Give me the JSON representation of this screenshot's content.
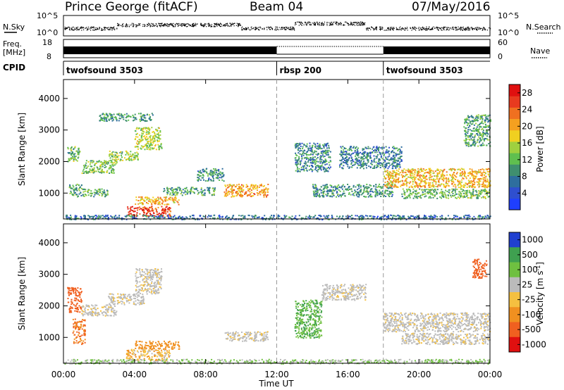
{
  "header": {
    "site": "Prince George (fitACF)",
    "beam": "Beam 04",
    "date": "07/May/2016"
  },
  "labels": {
    "nsky": "N.Sky",
    "freq_line1": "Freq.",
    "freq_line2": "[MHz]",
    "cpid": "CPID",
    "nsearch": "N.Search",
    "nave": "Nave",
    "xlabel": "Time UT",
    "range_ylabel": "Slant Range [km]",
    "power_label": "Power [dB]",
    "velocity_label_main": "Velocity  [m s",
    "velocity_label_sup": "-1",
    "velocity_label_end": "]"
  },
  "noise_axis": {
    "left_ticks": [
      "10^5",
      "10^0"
    ],
    "right_ticks": [
      "10^5",
      "10^0"
    ]
  },
  "freq_axis": {
    "left_ticks": [
      "18",
      "8"
    ],
    "right_ticks": [
      "60",
      "0"
    ]
  },
  "cpid_segments": [
    {
      "name": "twofsound 3503",
      "start_h": 0,
      "end_h": 12
    },
    {
      "name": "rbsp 200",
      "start_h": 12,
      "end_h": 18
    },
    {
      "name": "twofsound 3503",
      "start_h": 18,
      "end_h": 24
    }
  ],
  "chart_data": [
    {
      "type": "heatmap",
      "panel": "power",
      "xlabel": "Time UT",
      "ylabel": "Slant Range [km]",
      "x_ticks": [
        "00:00",
        "04:00",
        "08:00",
        "12:00",
        "16:00",
        "20:00",
        "00:00"
      ],
      "xlim_hours": [
        0,
        24
      ],
      "y_ticks": [
        1000,
        2000,
        3000,
        4000
      ],
      "ylim_km": [
        180,
        4600
      ],
      "colorbar": {
        "label": "Power [dB]",
        "ticks": [
          4,
          8,
          12,
          16,
          20,
          24,
          28
        ],
        "range": [
          0,
          30
        ],
        "colors": [
          "#1f3fff",
          "#2f4fcf",
          "#2e6e9e",
          "#3f8f6f",
          "#5fbf4f",
          "#9fd03f",
          "#f0d020",
          "#f5a020",
          "#f07020",
          "#e83a1f",
          "#e01010"
        ]
      },
      "regions": [
        {
          "t0": 0.2,
          "t1": 0.9,
          "r0": 2000,
          "r1": 2500,
          "level": 12
        },
        {
          "t0": 0.3,
          "t1": 1.0,
          "r0": 900,
          "r1": 1300,
          "level": 10
        },
        {
          "t0": 1.0,
          "t1": 3.0,
          "r0": 1650,
          "r1": 2050,
          "level": 13
        },
        {
          "t0": 2.5,
          "t1": 4.2,
          "r0": 2050,
          "r1": 2350,
          "level": 14
        },
        {
          "t0": 4.0,
          "t1": 5.5,
          "r0": 2400,
          "r1": 3100,
          "level": 15
        },
        {
          "t0": 2.0,
          "t1": 5.0,
          "r0": 3300,
          "r1": 3550,
          "level": 9
        },
        {
          "t0": 1.0,
          "t1": 2.5,
          "r0": 900,
          "r1": 1150,
          "level": 11
        },
        {
          "t0": 3.5,
          "t1": 6.0,
          "r0": 280,
          "r1": 600,
          "level": 27
        },
        {
          "t0": 4.0,
          "t1": 6.5,
          "r0": 650,
          "r1": 900,
          "level": 20
        },
        {
          "t0": 5.5,
          "t1": 8.5,
          "r0": 950,
          "r1": 1200,
          "level": 10
        },
        {
          "t0": 7.5,
          "t1": 9.0,
          "r0": 1400,
          "r1": 1800,
          "level": 9
        },
        {
          "t0": 9.0,
          "t1": 11.5,
          "r0": 900,
          "r1": 1300,
          "level": 21
        },
        {
          "t0": 13.0,
          "t1": 15.0,
          "r0": 1700,
          "r1": 2600,
          "level": 8
        },
        {
          "t0": 14.0,
          "t1": 18.5,
          "r0": 900,
          "r1": 1300,
          "level": 9
        },
        {
          "t0": 15.5,
          "t1": 19.0,
          "r0": 1800,
          "r1": 2500,
          "level": 7
        },
        {
          "t0": 18.0,
          "t1": 24.0,
          "r0": 1200,
          "r1": 1800,
          "level": 20
        },
        {
          "t0": 19.0,
          "t1": 24.0,
          "r0": 850,
          "r1": 1150,
          "level": 12
        },
        {
          "t0": 22.5,
          "t1": 24.0,
          "r0": 2500,
          "r1": 3500,
          "level": 10
        },
        {
          "t0": 0.0,
          "t1": 24.0,
          "r0": 180,
          "r1": 320,
          "level": 6
        }
      ]
    },
    {
      "type": "heatmap",
      "panel": "velocity",
      "xlabel": "Time UT",
      "ylabel": "Slant Range [km]",
      "x_ticks": [
        "00:00",
        "04:00",
        "08:00",
        "12:00",
        "16:00",
        "20:00",
        "00:00"
      ],
      "xlim_hours": [
        0,
        24
      ],
      "y_ticks": [
        1000,
        2000,
        3000,
        4000
      ],
      "ylim_km": [
        180,
        4600
      ],
      "colorbar": {
        "label": "Velocity [m s-1]",
        "ticks": [
          1000,
          500,
          100,
          25,
          -25,
          -100,
          -500,
          -1000
        ],
        "colors": [
          "#2040d0",
          "#3fa050",
          "#6fc040",
          "#bbbbbb",
          "#f5c040",
          "#f09020",
          "#f06020",
          "#e01010"
        ]
      },
      "regions": [
        {
          "t0": 0.2,
          "t1": 1.0,
          "r0": 1800,
          "r1": 2600,
          "velocity": -700
        },
        {
          "t0": 0.5,
          "t1": 1.2,
          "r0": 800,
          "r1": 1600,
          "velocity": -300
        },
        {
          "t0": 1.0,
          "t1": 3.0,
          "r0": 1700,
          "r1": 2050,
          "velocity": 0
        },
        {
          "t0": 2.5,
          "t1": 4.5,
          "r0": 2050,
          "r1": 2400,
          "velocity": 0
        },
        {
          "t0": 4.0,
          "t1": 5.5,
          "r0": 2400,
          "r1": 3200,
          "velocity": 0
        },
        {
          "t0": 3.5,
          "t1": 6.0,
          "r0": 280,
          "r1": 650,
          "velocity": -50
        },
        {
          "t0": 4.0,
          "t1": 6.5,
          "r0": 650,
          "r1": 900,
          "velocity": -150
        },
        {
          "t0": 9.0,
          "t1": 11.5,
          "r0": 900,
          "r1": 1200,
          "velocity": 0
        },
        {
          "t0": 13.0,
          "t1": 14.5,
          "r0": 1000,
          "r1": 2200,
          "velocity": 300
        },
        {
          "t0": 14.5,
          "t1": 17.0,
          "r0": 2200,
          "r1": 2700,
          "velocity": 0
        },
        {
          "t0": 18.0,
          "t1": 24.0,
          "r0": 1200,
          "r1": 1800,
          "velocity": 0
        },
        {
          "t0": 19.0,
          "t1": 24.0,
          "r0": 800,
          "r1": 1150,
          "velocity": 0
        },
        {
          "t0": 23.0,
          "t1": 23.8,
          "r0": 2900,
          "r1": 3500,
          "velocity": -700
        },
        {
          "t0": 0.0,
          "t1": 24.0,
          "r0": 180,
          "r1": 320,
          "velocity": 60
        }
      ]
    }
  ]
}
